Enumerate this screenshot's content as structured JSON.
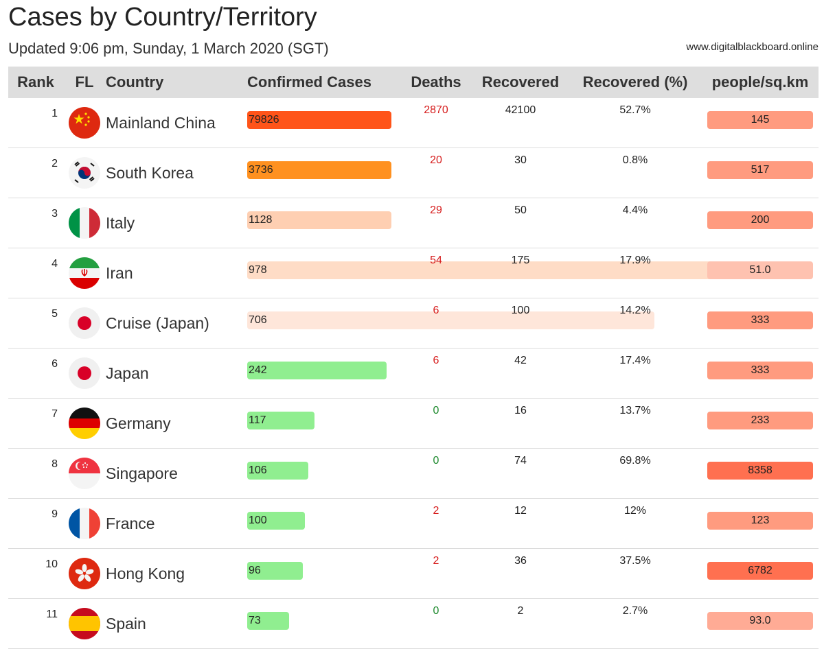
{
  "title": "Cases by Country/Territory",
  "subtitle": "Updated 9:06 pm, Sunday, 1 March 2020 (SGT)",
  "site": "www.digitalblackboard.online",
  "columns": {
    "rank": "Rank",
    "flag": "FL",
    "country": "Country",
    "cases": "Confirmed Cases",
    "deaths": "Deaths",
    "recovered": "Recovered",
    "recovered_pct": "Recovered (%)",
    "density": "people/sq.km"
  },
  "chart_data": {
    "type": "table",
    "rows": [
      {
        "rank": "1",
        "country": "Mainland China",
        "flag": "china-flag-icon",
        "cases": 79826,
        "cases_label": "79826",
        "cases_color": "#ff5419",
        "deaths": "2870",
        "deaths_color": "#d61c1c",
        "recovered": "42100",
        "recovered_pct": "52.7%",
        "density": "145",
        "density_color": "#ff9b7f"
      },
      {
        "rank": "2",
        "country": "South Korea",
        "flag": "south-korea-flag-icon",
        "cases": 3736,
        "cases_label": "3736",
        "cases_color": "#ff9120",
        "deaths": "20",
        "deaths_color": "#d61c1c",
        "recovered": "30",
        "recovered_pct": "0.8%",
        "density": "517",
        "density_color": "#ff9b7f"
      },
      {
        "rank": "3",
        "country": "Italy",
        "flag": "italy-flag-icon",
        "cases": 1128,
        "cases_label": "1128",
        "cases_color": "#fecfb2",
        "deaths": "29",
        "deaths_color": "#d61c1c",
        "recovered": "50",
        "recovered_pct": "4.4%",
        "density": "200",
        "density_color": "#ff9b7f"
      },
      {
        "rank": "4",
        "country": "Iran",
        "flag": "iran-flag-icon",
        "cases": 978,
        "cases_label": "978",
        "cases_color": "#fedcc6",
        "deaths": "54",
        "deaths_color": "#d61c1c",
        "recovered": "175",
        "recovered_pct": "17.9%",
        "density": "51.0",
        "density_color": "#fec2b0"
      },
      {
        "rank": "5",
        "country": "Cruise (Japan)",
        "flag": "japan-flag-icon",
        "cases": 706,
        "cases_label": "706",
        "cases_color": "#fee6da",
        "deaths": "6",
        "deaths_color": "#d61c1c",
        "recovered": "100",
        "recovered_pct": "14.2%",
        "density": "333",
        "density_color": "#ff9b7f"
      },
      {
        "rank": "6",
        "country": "Japan",
        "flag": "japan-flag-icon",
        "cases": 242,
        "cases_label": "242",
        "cases_color": "#90ee90",
        "deaths": "6",
        "deaths_color": "#d61c1c",
        "recovered": "42",
        "recovered_pct": "17.4%",
        "density": "333",
        "density_color": "#ff9b7f"
      },
      {
        "rank": "7",
        "country": "Germany",
        "flag": "germany-flag-icon",
        "cases": 117,
        "cases_label": "117",
        "cases_color": "#90ee90",
        "deaths": "0",
        "deaths_color": "#1e8a2e",
        "recovered": "16",
        "recovered_pct": "13.7%",
        "density": "233",
        "density_color": "#ff9b7f"
      },
      {
        "rank": "8",
        "country": "Singapore",
        "flag": "singapore-flag-icon",
        "cases": 106,
        "cases_label": "106",
        "cases_color": "#90ee90",
        "deaths": "0",
        "deaths_color": "#1e8a2e",
        "recovered": "74",
        "recovered_pct": "69.8%",
        "density": "8358",
        "density_color": "#ff7050"
      },
      {
        "rank": "9",
        "country": "France",
        "flag": "france-flag-icon",
        "cases": 100,
        "cases_label": "100",
        "cases_color": "#90ee90",
        "deaths": "2",
        "deaths_color": "#d61c1c",
        "recovered": "12",
        "recovered_pct": "12%",
        "density": "123",
        "density_color": "#ff9b7f"
      },
      {
        "rank": "10",
        "country": "Hong Kong",
        "flag": "hong-kong-flag-icon",
        "cases": 96,
        "cases_label": "96",
        "cases_color": "#90ee90",
        "deaths": "2",
        "deaths_color": "#d61c1c",
        "recovered": "36",
        "recovered_pct": "37.5%",
        "density": "6782",
        "density_color": "#ff7050"
      },
      {
        "rank": "11",
        "country": "Spain",
        "flag": "spain-flag-icon",
        "cases": 73,
        "cases_label": "73",
        "cases_color": "#90ee90",
        "deaths": "0",
        "deaths_color": "#1e8a2e",
        "recovered": "2",
        "recovered_pct": "2.7%",
        "density": "93.0",
        "density_color": "#ffab95"
      }
    ]
  }
}
